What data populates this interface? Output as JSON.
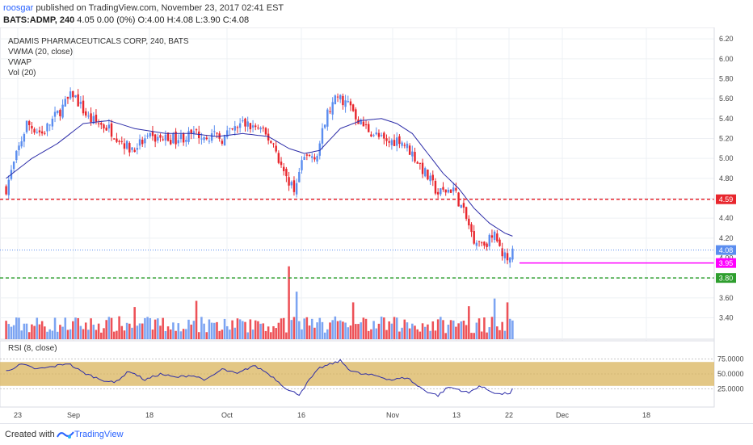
{
  "header": {
    "user": "roosgar",
    "published_text": "published on TradingView.com, November 23, 2017 02:41 EST",
    "symbol": "BATS:ADMP, 240",
    "quote": "4.05 0.00 (0%) O:4.00 H:4.08 L:3.90 C:4.08"
  },
  "footer": {
    "created_with": "Created with",
    "brand": "TradingView"
  },
  "colors": {
    "up": "#5b8def",
    "down": "#e8262d",
    "vwma": "#2c2ca8",
    "support": "#2e9e2e",
    "resistance": "#e8262d",
    "target": "#ff00ff",
    "rsi_band": "#d9b45c"
  },
  "chart_data": [
    {
      "type": "candlestick",
      "title": "ADAMIS PHARMACEUTICALS CORP, 240, BATS",
      "legend": [
        "VWMA (20, close)",
        "VWAP",
        "Vol (20)"
      ],
      "ylim": [
        3.25,
        6.25
      ],
      "yticks": [
        "6.20",
        "6.00",
        "5.80",
        "5.60",
        "5.40",
        "5.20",
        "5.00",
        "4.80",
        "4.60",
        "4.40",
        "4.20",
        "4.00",
        "3.80",
        "3.60",
        "3.40"
      ],
      "xticks": [
        "23",
        "Sep",
        "18",
        "Oct",
        "16",
        "Nov",
        "13",
        "22",
        "Dec",
        "18"
      ],
      "grid": true,
      "price_labels": [
        {
          "label": "4.59",
          "value": 4.59,
          "style": "dashed",
          "color": "#e8262d"
        },
        {
          "label": "4.08",
          "value": 4.08,
          "style": "dotted",
          "color": "#5b8def"
        },
        {
          "label": "3.95",
          "value": 3.95,
          "style": "solid",
          "color": "#ff00ff"
        },
        {
          "label": "3.80",
          "value": 3.8,
          "style": "dashed",
          "color": "#2e9e2e"
        }
      ],
      "close_anchors": [
        [
          0,
          4.7
        ],
        [
          8,
          5.35
        ],
        [
          14,
          5.25
        ],
        [
          20,
          5.45
        ],
        [
          26,
          5.65
        ],
        [
          32,
          5.4
        ],
        [
          40,
          5.3
        ],
        [
          48,
          5.1
        ],
        [
          56,
          5.2
        ],
        [
          66,
          5.2
        ],
        [
          76,
          5.25
        ],
        [
          84,
          5.2
        ],
        [
          92,
          5.35
        ],
        [
          98,
          5.3
        ],
        [
          104,
          5.15
        ],
        [
          108,
          4.85
        ],
        [
          112,
          4.7
        ],
        [
          116,
          5.0
        ],
        [
          121,
          5.05
        ],
        [
          125,
          5.45
        ],
        [
          129,
          5.62
        ],
        [
          133,
          5.55
        ],
        [
          138,
          5.35
        ],
        [
          143,
          5.25
        ],
        [
          148,
          5.15
        ],
        [
          153,
          5.2
        ],
        [
          158,
          5.05
        ],
        [
          163,
          4.85
        ],
        [
          168,
          4.65
        ],
        [
          174,
          4.7
        ],
        [
          178,
          4.45
        ],
        [
          182,
          4.2
        ],
        [
          186,
          4.15
        ],
        [
          190,
          4.22
        ],
        [
          193,
          4.05
        ],
        [
          196,
          3.95
        ],
        [
          197,
          4.08
        ]
      ],
      "vwma_anchors": [
        [
          0,
          4.8
        ],
        [
          10,
          5.0
        ],
        [
          20,
          5.15
        ],
        [
          30,
          5.35
        ],
        [
          40,
          5.38
        ],
        [
          50,
          5.3
        ],
        [
          62,
          5.25
        ],
        [
          72,
          5.25
        ],
        [
          82,
          5.22
        ],
        [
          92,
          5.25
        ],
        [
          102,
          5.22
        ],
        [
          110,
          5.1
        ],
        [
          116,
          5.05
        ],
        [
          122,
          5.08
        ],
        [
          130,
          5.3
        ],
        [
          138,
          5.38
        ],
        [
          146,
          5.4
        ],
        [
          152,
          5.35
        ],
        [
          158,
          5.25
        ],
        [
          164,
          5.05
        ],
        [
          170,
          4.85
        ],
        [
          176,
          4.7
        ],
        [
          182,
          4.5
        ],
        [
          188,
          4.35
        ],
        [
          194,
          4.25
        ],
        [
          197,
          4.22
        ]
      ],
      "volume_spikes": [
        [
          110,
          0.95
        ],
        [
          113,
          0.62
        ],
        [
          50,
          0.42
        ],
        [
          74,
          0.5
        ],
        [
          135,
          0.48
        ],
        [
          180,
          0.43
        ],
        [
          190,
          0.53
        ],
        [
          195,
          0.48
        ]
      ]
    },
    {
      "type": "line",
      "title": "RSI (8, close)",
      "ylim": [
        0,
        100
      ],
      "yticks": [
        "75.0000",
        "50.0000",
        "25.0000"
      ],
      "band": [
        30,
        70
      ],
      "rsi_anchors": [
        [
          0,
          55
        ],
        [
          6,
          66
        ],
        [
          12,
          58
        ],
        [
          18,
          62
        ],
        [
          24,
          68
        ],
        [
          30,
          52
        ],
        [
          36,
          42
        ],
        [
          42,
          35
        ],
        [
          48,
          55
        ],
        [
          54,
          40
        ],
        [
          60,
          50
        ],
        [
          66,
          44
        ],
        [
          72,
          48
        ],
        [
          78,
          40
        ],
        [
          84,
          58
        ],
        [
          90,
          50
        ],
        [
          96,
          64
        ],
        [
          100,
          56
        ],
        [
          104,
          44
        ],
        [
          110,
          22
        ],
        [
          114,
          16
        ],
        [
          118,
          40
        ],
        [
          122,
          60
        ],
        [
          126,
          66
        ],
        [
          130,
          72
        ],
        [
          134,
          56
        ],
        [
          138,
          50
        ],
        [
          144,
          47
        ],
        [
          150,
          40
        ],
        [
          156,
          44
        ],
        [
          160,
          30
        ],
        [
          164,
          20
        ],
        [
          168,
          14
        ],
        [
          172,
          28
        ],
        [
          176,
          24
        ],
        [
          180,
          18
        ],
        [
          184,
          30
        ],
        [
          188,
          22
        ],
        [
          192,
          16
        ],
        [
          196,
          18
        ],
        [
          198,
          30
        ]
      ]
    }
  ]
}
